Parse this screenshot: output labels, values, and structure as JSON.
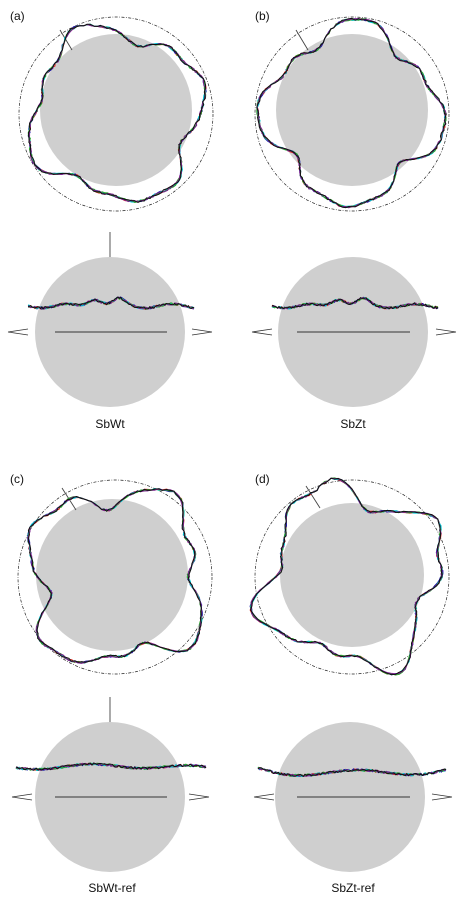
{
  "panels": [
    {
      "label": "(a)",
      "caption": "SbWt"
    },
    {
      "label": "(b)",
      "caption": "SbZt"
    },
    {
      "label": "(c)",
      "caption": "SbWt-ref"
    },
    {
      "label": "(d)",
      "caption": "SbZt-ref"
    }
  ],
  "colors": {
    "disk": "#cfcfcf",
    "traces": [
      "#e3241b",
      "#1a1aa8",
      "#00c8d2",
      "#2ca02c",
      "#7a1f8a",
      "#111111"
    ]
  }
}
